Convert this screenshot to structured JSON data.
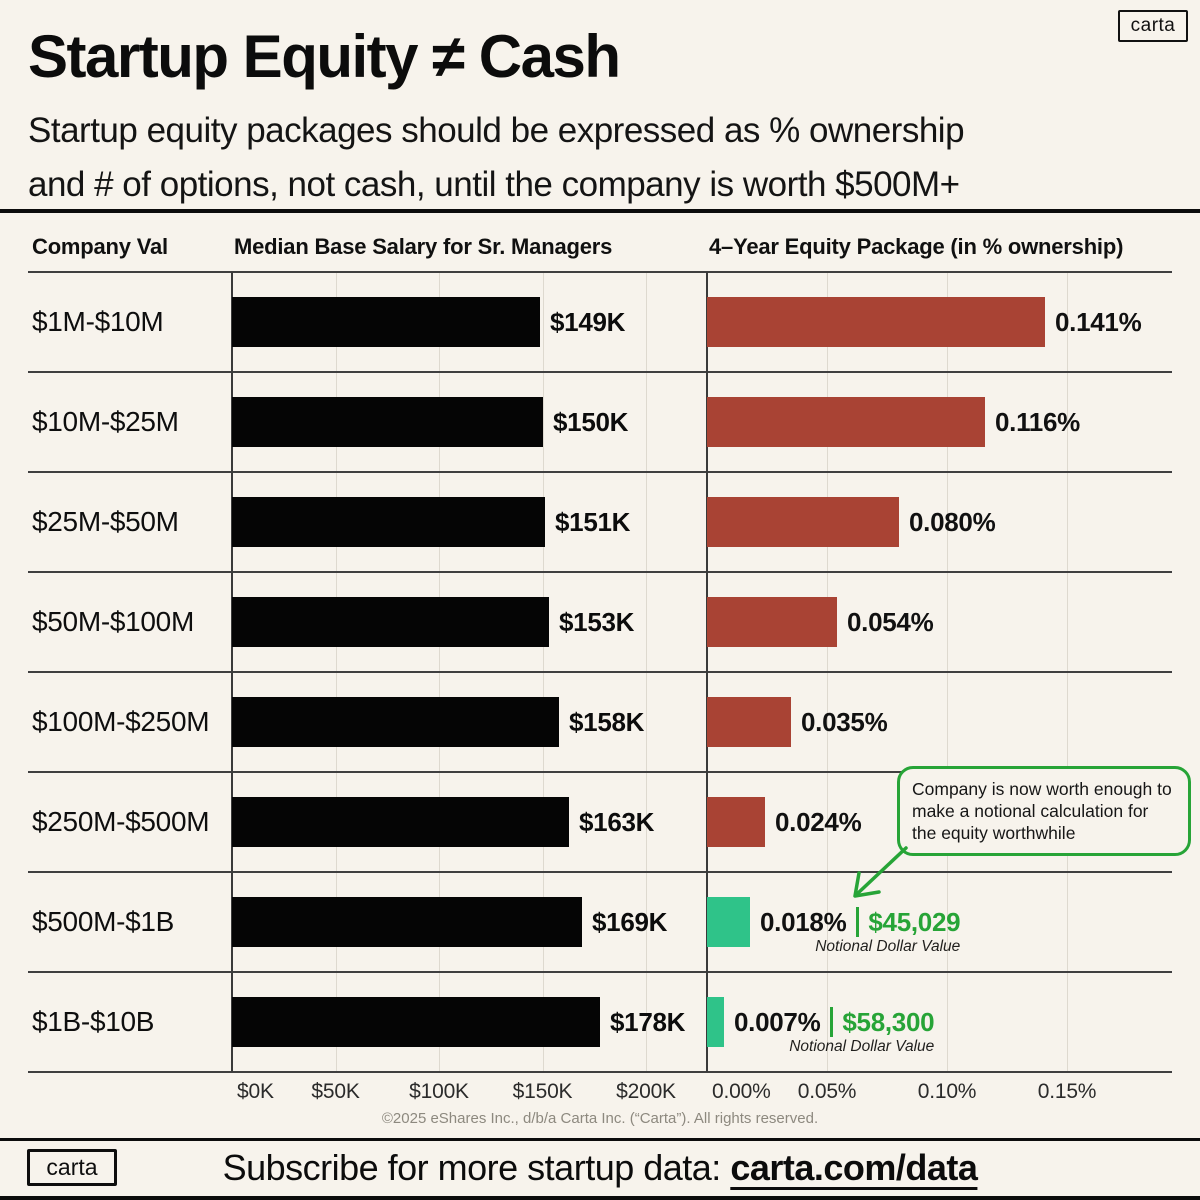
{
  "brand": {
    "logo_text": "carta"
  },
  "header": {
    "title": "Startup Equity ≠ Cash",
    "subtitle_line1": "Startup equity packages should be expressed as % ownership",
    "subtitle_line2": "and # of options, not cash, until the company is worth $500M+"
  },
  "table": {
    "col1_header": "Company Val",
    "col2_header": "Median Base Salary for Sr. Managers",
    "col3_header": "4–Year Equity Package (in % ownership)"
  },
  "chart_data": {
    "type": "bar",
    "orientation": "horizontal",
    "categories": [
      "$1M-$10M",
      "$10M-$25M",
      "$25M-$50M",
      "$50M-$100M",
      "$100M-$250M",
      "$250M-$500M",
      "$500M-$1B",
      "$1B-$10B"
    ],
    "series": [
      {
        "name": "Median Base Salary for Sr. Managers",
        "unit": "USD thousands per year",
        "values": [
          149,
          150,
          151,
          153,
          158,
          163,
          169,
          178
        ],
        "labels": [
          "$149K",
          "$150K",
          "$151K",
          "$153K",
          "$158K",
          "$163K",
          "$169K",
          "$178K"
        ],
        "axis_ticks": [
          "$0K",
          "$50K",
          "$100K",
          "$150K",
          "$200K"
        ],
        "tick_values": [
          0,
          50,
          100,
          150,
          200
        ],
        "axis_range": [
          0,
          228
        ],
        "bar_color": "#050505"
      },
      {
        "name": "4-Year Equity Package (in % ownership)",
        "unit": "% ownership",
        "values": [
          0.141,
          0.116,
          0.08,
          0.054,
          0.035,
          0.024,
          0.018,
          0.007
        ],
        "labels": [
          "0.141%",
          "0.116%",
          "0.080%",
          "0.054%",
          "0.035%",
          "0.024%",
          "0.018%",
          "0.007%"
        ],
        "axis_ticks": [
          "0.00%",
          "0.05%",
          "0.10%",
          "0.15%"
        ],
        "tick_values": [
          0,
          0.05,
          0.1,
          0.15
        ],
        "axis_range": [
          0,
          0.194
        ],
        "bar_color": "#a94334",
        "highlight_bar_color": "#2fc389",
        "highlight_rows": [
          6,
          7
        ],
        "notional_values": {
          "6": "$45,029",
          "7": "$58,300"
        },
        "notional_caption": "Notional Dollar Value"
      }
    ],
    "grid": true,
    "legend_position": "none"
  },
  "callout": {
    "text": "Company is now worth enough to make a notional calculation for the equity worthwhile"
  },
  "footer": {
    "copyright": "©2025 eShares Inc., d/b/a Carta Inc. (“Carta”). All rights reserved.",
    "subscribe_prefix": "Subscribe for more startup data: ",
    "subscribe_link": "carta.com/data"
  },
  "colors": {
    "background": "#f7f3ec",
    "ink": "#0c0c0c",
    "salary_bar": "#050505",
    "equity_bar_red": "#a94334",
    "equity_bar_green": "#2fc389",
    "accent_green": "#27a437",
    "gridline": "#ded9cf",
    "row_line": "#3f3f3f",
    "muted_text": "#8d897f"
  }
}
